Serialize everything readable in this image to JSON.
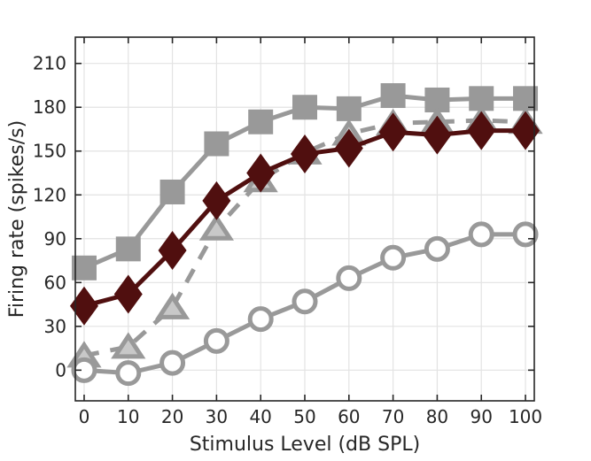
{
  "figure": {
    "background": "#ffffff",
    "frame_color": "#262626",
    "grid_color": "#e3e3e3",
    "tick_label_color": "#262626",
    "axis_label_color": "#262626",
    "tick_font_size": 20,
    "label_font_size": 22
  },
  "chart_data": {
    "type": "line",
    "title": "",
    "xlabel": "Stimulus Level (dB SPL)",
    "ylabel": "Firing rate (spikes/s)",
    "xlim": [
      -2,
      102
    ],
    "ylim": [
      -21,
      228
    ],
    "xticks": [
      0,
      10,
      20,
      30,
      40,
      50,
      60,
      70,
      80,
      90,
      100
    ],
    "yticks": [
      0,
      30,
      60,
      90,
      120,
      150,
      180,
      210
    ],
    "grid": true,
    "tick_direction": "in",
    "legend_position": "none",
    "x": [
      0,
      10,
      20,
      30,
      40,
      50,
      60,
      70,
      80,
      90,
      100
    ],
    "series": [
      {
        "name": "gray-squares",
        "marker": "square",
        "line_style": "solid",
        "line_color": "#999999",
        "face_color": "#999999",
        "edge_color": "#999999",
        "values": [
          70,
          83,
          122,
          155,
          170,
          180,
          179,
          188,
          185,
          186,
          186
        ]
      },
      {
        "name": "gray-triangles-dashed",
        "marker": "triangle",
        "line_style": "dashed",
        "line_color": "#999999",
        "face_color": "#c8c8c8",
        "edge_color": "#999999",
        "values": [
          10,
          16,
          43,
          97,
          130,
          149,
          162,
          169,
          170,
          171,
          170
        ]
      },
      {
        "name": "gray-open-circles",
        "marker": "circle",
        "line_style": "solid",
        "line_color": "#999999",
        "face_color": "#ffffff",
        "edge_color": "#999999",
        "values": [
          0,
          -2,
          5,
          20,
          35,
          47,
          63,
          77,
          83,
          93,
          93
        ]
      },
      {
        "name": "dark-red-diamonds",
        "marker": "diamond",
        "line_style": "solid",
        "line_color": "#500f0f",
        "face_color": "#500f0f",
        "edge_color": "#500f0f",
        "values": [
          44,
          52,
          82,
          116,
          135,
          148,
          152,
          163,
          161,
          164,
          164
        ]
      }
    ]
  }
}
